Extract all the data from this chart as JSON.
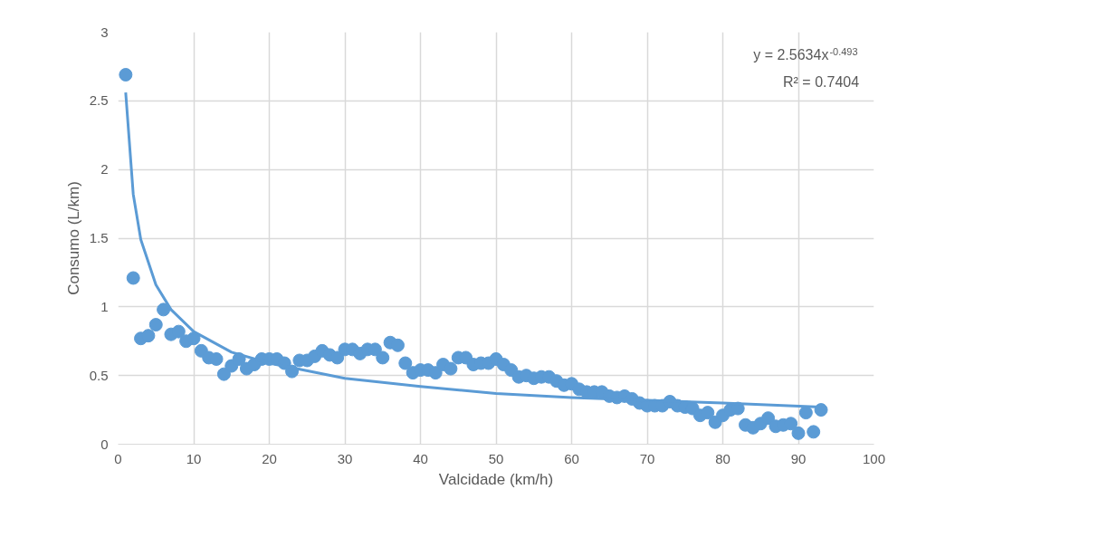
{
  "chart_data": {
    "type": "scatter",
    "xlabel": "Valcidade (km/h)",
    "ylabel": "Consumo (L/km)",
    "xlim": [
      0,
      100
    ],
    "xticks": [
      0,
      10,
      20,
      30,
      40,
      50,
      60,
      70,
      80,
      90,
      100
    ],
    "ylim": [
      0,
      3
    ],
    "yticks": [
      0,
      0.5,
      1,
      1.5,
      2,
      2.5,
      3
    ],
    "grid": true,
    "marker": "circle",
    "annotations": [
      "y = 2.5634x$^{-0.493}$",
      "R² = 0.7404"
    ],
    "series": [
      {
        "color": "#5b9bd5",
        "x": [
          1,
          2,
          3,
          4,
          5,
          6,
          7,
          8,
          9,
          10,
          11,
          12,
          13,
          14,
          15,
          16,
          17,
          18,
          19,
          20,
          21,
          22,
          23,
          24,
          25,
          26,
          27,
          28,
          29,
          30,
          31,
          32,
          33,
          34,
          35,
          36,
          37,
          38,
          39,
          40,
          41,
          42,
          43,
          44,
          45,
          46,
          47,
          48,
          49,
          50,
          51,
          52,
          53,
          54,
          55,
          56,
          57,
          58,
          59,
          60,
          61,
          62,
          63,
          64,
          65,
          66,
          67,
          68,
          69,
          70,
          71,
          72,
          73,
          74,
          75,
          76,
          77,
          78,
          79,
          80,
          81,
          82,
          83,
          84,
          85,
          86,
          87,
          88,
          89,
          90,
          91,
          92,
          93
        ],
        "values": [
          2.69,
          1.21,
          0.77,
          0.79,
          0.87,
          0.98,
          0.8,
          0.82,
          0.75,
          0.77,
          0.68,
          0.63,
          0.62,
          0.51,
          0.57,
          0.62,
          0.55,
          0.58,
          0.62,
          0.62,
          0.62,
          0.59,
          0.53,
          0.61,
          0.61,
          0.64,
          0.68,
          0.65,
          0.63,
          0.69,
          0.69,
          0.66,
          0.69,
          0.69,
          0.63,
          0.74,
          0.72,
          0.59,
          0.52,
          0.54,
          0.54,
          0.52,
          0.58,
          0.55,
          0.63,
          0.63,
          0.58,
          0.59,
          0.59,
          0.62,
          0.58,
          0.54,
          0.49,
          0.5,
          0.48,
          0.49,
          0.49,
          0.46,
          0.43,
          0.44,
          0.4,
          0.38,
          0.38,
          0.38,
          0.35,
          0.34,
          0.35,
          0.33,
          0.3,
          0.28,
          0.28,
          0.28,
          0.31,
          0.28,
          0.27,
          0.26,
          0.21,
          0.23,
          0.16,
          0.21,
          0.25,
          0.26,
          0.14,
          0.12,
          0.15,
          0.19,
          0.13,
          0.14,
          0.15,
          0.08,
          0.23,
          0.09,
          0.25
        ]
      },
      {
        "type": "line",
        "marker": "none",
        "color": "#5b9bd5",
        "x": [
          1,
          2,
          3,
          5,
          7,
          10,
          15,
          20,
          30,
          40,
          50,
          60,
          70,
          80,
          93
        ],
        "values": [
          2.56,
          1.82,
          1.49,
          1.16,
          0.98,
          0.82,
          0.67,
          0.59,
          0.48,
          0.42,
          0.37,
          0.34,
          0.32,
          0.3,
          0.27
        ]
      }
    ]
  }
}
